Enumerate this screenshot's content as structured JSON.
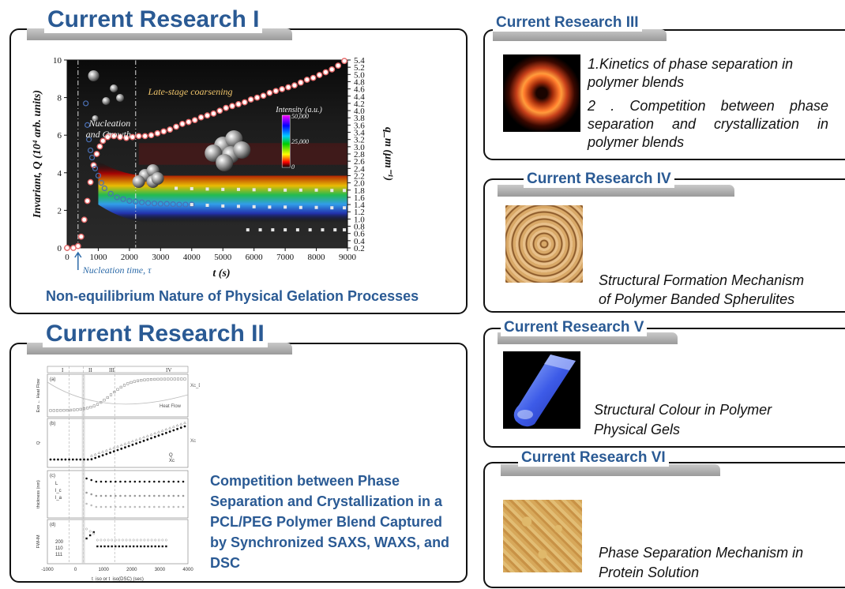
{
  "panels": {
    "research_1": {
      "title": "Current Research I",
      "caption": "Non-equilibrium Nature of Physical Gelation Processes",
      "figure": {
        "annotations": {
          "late_stage": "Late-stage coarsening",
          "nucleation_1": "Nucleation",
          "nucleation_2": "and Growth",
          "nucleation_time": "Nucleation time, τ",
          "intensity_title": "Intensity (a.u.)",
          "intensity_max": "50,000",
          "intensity_mid": "25,000",
          "intensity_min": "0"
        },
        "ylabel_left": "Invariant, Q (10⁴ arb. units)",
        "ylabel_right": "q_m (μm⁻¹)",
        "xlabel": "t (s)"
      }
    },
    "research_2": {
      "title": "Current Research II",
      "caption": "Competition between Phase Separation and Crystallization in a PCL/PEG Polymer Blend Captured by Synchronized SAXS, WAXS, and DSC",
      "figure": {
        "stage_labels": [
          "I",
          "II",
          "III",
          "IV"
        ],
        "panel_labels": [
          "(a)",
          "(b)",
          "(c)",
          "(d)"
        ],
        "ylabels": [
          "Exo ← Heat Flow",
          "Q",
          "thickness (nm)",
          "FWHM"
        ],
        "right_labels": [
          "Xc_DSC",
          "Xc"
        ],
        "legend_b": [
          "Q",
          "Xc"
        ],
        "legend_c": [
          "L",
          "l_c",
          "l_a"
        ],
        "legend_d": [
          "200",
          "110",
          "111"
        ],
        "heat_flow_label": "Heat Flow",
        "xlabel": "t_iso or t_iso(DSC) (sec)",
        "xticks": [
          "-1000",
          "0",
          "1000",
          "2000",
          "3000",
          "4000"
        ]
      }
    },
    "research_3": {
      "title": "Current Research III",
      "items": [
        "1.Kinetics of phase separation in polymer blends",
        "2 . Competition between phase separation and crystallization in polymer blends"
      ]
    },
    "research_4": {
      "title": "Current Research IV",
      "caption_1": "Structural Formation Mechanism",
      "caption_2": "of Polymer Banded Spherulites"
    },
    "research_5": {
      "title": "Current Research V",
      "caption_1": "Structural Colour in Polymer",
      "caption_2": "Physical Gels"
    },
    "research_6": {
      "title": "Current Research VI",
      "caption_1": "Phase Separation Mechanism in",
      "caption_2": "Protein Solution"
    }
  },
  "chart_data": {
    "type": "scatter",
    "xlabel": "t (s)",
    "ylabel": "Invariant, Q (10⁴ arb. units)",
    "y2label": "q_m (μm⁻¹)",
    "xlim": [
      0,
      9000
    ],
    "ylim": [
      0,
      10
    ],
    "y2lim": [
      0.2,
      5.4
    ],
    "xticks": [
      0,
      1000,
      2000,
      3000,
      4000,
      5000,
      6000,
      7000,
      8000,
      9000
    ],
    "yticks": [
      0,
      2,
      4,
      6,
      8,
      10
    ],
    "y2ticks": [
      0.2,
      0.4,
      0.6,
      0.8,
      1.0,
      1.2,
      1.4,
      1.6,
      1.8,
      2.0,
      2.2,
      2.4,
      2.6,
      2.8,
      3.0,
      3.2,
      3.4,
      3.6,
      3.8,
      4.0,
      4.2,
      4.4,
      4.6,
      4.8,
      5.0,
      5.2,
      5.4
    ],
    "series": [
      {
        "color": "#e86a6a",
        "axis": "left",
        "x": [
          0,
          200,
          350,
          450,
          550,
          650,
          750,
          850,
          950,
          1050,
          1150,
          1300,
          1500,
          1700,
          1900,
          2100,
          2300,
          2500,
          2700,
          2900,
          3100,
          3300,
          3500,
          3700,
          3900,
          4100,
          4300,
          4500,
          4700,
          4900,
          5100,
          5300,
          5500,
          5700,
          5900,
          6100,
          6300,
          6500,
          6700,
          6900,
          7100,
          7300,
          7500,
          7700,
          7900,
          8100,
          8300,
          8500,
          8700,
          8900
        ],
        "y": [
          0.0,
          0.0,
          0.1,
          0.6,
          1.5,
          2.5,
          3.5,
          4.4,
          5.0,
          5.4,
          5.7,
          5.9,
          5.95,
          5.9,
          5.85,
          5.9,
          5.95,
          5.95,
          6.0,
          6.1,
          6.2,
          6.3,
          6.45,
          6.6,
          6.7,
          6.8,
          6.95,
          7.05,
          7.15,
          7.3,
          7.45,
          7.55,
          7.65,
          7.75,
          7.9,
          8.0,
          8.1,
          8.25,
          8.35,
          8.45,
          8.55,
          8.65,
          8.8,
          8.95,
          9.05,
          9.2,
          9.35,
          9.5,
          9.7,
          9.95
        ]
      },
      {
        "color": "#4a6fb4",
        "axis": "right",
        "x": [
          600,
          650,
          700,
          750,
          800,
          900,
          1000,
          1100,
          1200,
          1400,
          1600,
          1800,
          2000,
          2200,
          2400,
          2600,
          2800,
          3000,
          3200,
          3400,
          3600,
          3800,
          4000
        ],
        "y": [
          4.2,
          3.6,
          3.2,
          2.9,
          2.7,
          2.4,
          2.2,
          2.0,
          1.85,
          1.7,
          1.6,
          1.55,
          1.5,
          1.48,
          1.46,
          1.44,
          1.43,
          1.42,
          1.42,
          1.41,
          1.4,
          1.4,
          1.4
        ]
      },
      {
        "color": "#e8e8e8",
        "axis": "right",
        "x": [
          4000,
          4500,
          5000,
          5500,
          6000,
          6500,
          7000,
          7500,
          8000,
          8500,
          8900
        ],
        "y": [
          1.4,
          1.38,
          1.36,
          1.35,
          1.34,
          1.33,
          1.33,
          1.32,
          1.32,
          1.31,
          1.31
        ]
      },
      {
        "color": "#e8e8e8",
        "axis": "right",
        "x": [
          3500,
          4000,
          4500,
          5000,
          5500,
          6000,
          6500,
          7000,
          7500,
          8000,
          8500,
          8900
        ],
        "y": [
          1.85,
          1.84,
          1.83,
          1.82,
          1.82,
          1.81,
          1.81,
          1.8,
          1.8,
          1.8,
          1.79,
          1.79
        ]
      },
      {
        "color": "#e8e8e8",
        "axis": "right",
        "x": [
          5800,
          6200,
          6600,
          7000,
          7400,
          7800,
          8200,
          8600,
          8900
        ],
        "y": [
          0.7,
          0.7,
          0.7,
          0.7,
          0.7,
          0.7,
          0.7,
          0.7,
          0.7
        ]
      }
    ]
  }
}
